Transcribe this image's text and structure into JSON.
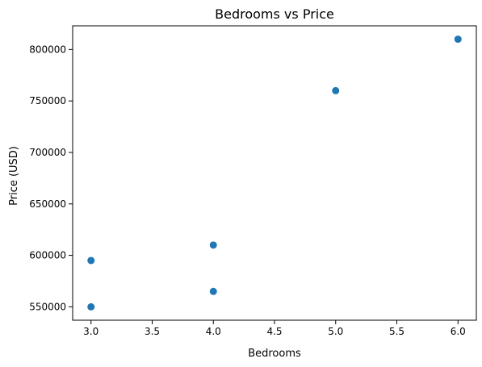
{
  "chart_data": {
    "type": "scatter",
    "title": "Bedrooms vs Price",
    "xlabel": "Bedrooms",
    "ylabel": "Price (USD)",
    "xlim": [
      2.85,
      6.15
    ],
    "ylim": [
      537000,
      823000
    ],
    "x_ticks": [
      3.0,
      3.5,
      4.0,
      4.5,
      5.0,
      5.5,
      6.0
    ],
    "x_tick_labels": [
      "3.0",
      "3.5",
      "4.0",
      "4.5",
      "5.0",
      "5.5",
      "6.0"
    ],
    "y_ticks": [
      550000,
      600000,
      650000,
      700000,
      750000,
      800000
    ],
    "y_tick_labels": [
      "550000",
      "600000",
      "650000",
      "700000",
      "750000",
      "800000"
    ],
    "grid": false,
    "legend": "none",
    "marker_color": "#1f77b4",
    "points": [
      {
        "x": 3,
        "y": 550000
      },
      {
        "x": 3,
        "y": 595000
      },
      {
        "x": 4,
        "y": 565000
      },
      {
        "x": 4,
        "y": 610000
      },
      {
        "x": 5,
        "y": 760000
      },
      {
        "x": 6,
        "y": 810000
      }
    ]
  }
}
